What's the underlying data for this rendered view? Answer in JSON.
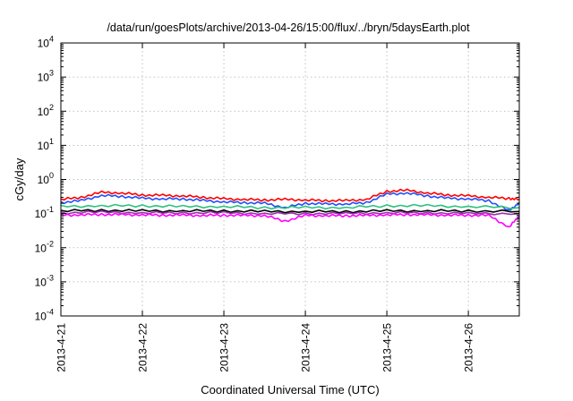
{
  "chart_data": {
    "type": "line",
    "title": "/data/run/goesPlots/archive/2013-04-26/15:00/flux/../bryn/5daysEarth.plot",
    "xlabel": "Coordinated Universal Time (UTC)",
    "ylabel": "cGy/day",
    "yscale": "log",
    "ylim": [
      0.0001,
      10000
    ],
    "y_ticks": [
      {
        "value": 0.0001,
        "base": "10",
        "exp": "-4"
      },
      {
        "value": 0.001,
        "base": "10",
        "exp": "-3"
      },
      {
        "value": 0.01,
        "base": "10",
        "exp": "-2"
      },
      {
        "value": 0.1,
        "base": "10",
        "exp": "-1"
      },
      {
        "value": 1,
        "base": "10",
        "exp": "0"
      },
      {
        "value": 10,
        "base": "10",
        "exp": "1"
      },
      {
        "value": 100,
        "base": "10",
        "exp": "2"
      },
      {
        "value": 1000,
        "base": "10",
        "exp": "3"
      },
      {
        "value": 10000,
        "base": "10",
        "exp": "4"
      }
    ],
    "x_ticks": [
      "2013-4-21",
      "2013-4-22",
      "2013-4-23",
      "2013-4-24",
      "2013-4-25",
      "2013-4-26"
    ],
    "xlim": [
      "2013-04-21T00:00",
      "2013-04-26T15:00"
    ],
    "grid": true,
    "legend": "none",
    "series": [
      {
        "color": "#ff0000",
        "x": [
          "2013-04-21T00:00",
          "2013-04-21T06:00",
          "2013-04-21T12:00",
          "2013-04-21T18:00",
          "2013-04-22T00:00",
          "2013-04-22T06:00",
          "2013-04-22T12:00",
          "2013-04-22T18:00",
          "2013-04-23T00:00",
          "2013-04-23T06:00",
          "2013-04-23T12:00",
          "2013-04-23T18:00",
          "2013-04-24T00:00",
          "2013-04-24T06:00",
          "2013-04-24T12:00",
          "2013-04-24T18:00",
          "2013-04-25T00:00",
          "2013-04-25T06:00",
          "2013-04-25T12:00",
          "2013-04-25T18:00",
          "2013-04-26T00:00",
          "2013-04-26T06:00",
          "2013-04-26T12:00",
          "2013-04-26T15:00"
        ],
        "values": [
          0.26,
          0.3,
          0.42,
          0.4,
          0.35,
          0.34,
          0.33,
          0.3,
          0.27,
          0.26,
          0.25,
          0.26,
          0.25,
          0.24,
          0.24,
          0.26,
          0.45,
          0.48,
          0.4,
          0.35,
          0.33,
          0.3,
          0.28,
          0.26
        ]
      },
      {
        "color": "#1f4fff",
        "x": [
          "2013-04-21T00:00",
          "2013-04-21T06:00",
          "2013-04-21T12:00",
          "2013-04-21T18:00",
          "2013-04-22T00:00",
          "2013-04-22T06:00",
          "2013-04-22T12:00",
          "2013-04-22T18:00",
          "2013-04-23T00:00",
          "2013-04-23T06:00",
          "2013-04-23T12:00",
          "2013-04-23T18:00",
          "2013-04-24T00:00",
          "2013-04-24T06:00",
          "2013-04-24T12:00",
          "2013-04-24T18:00",
          "2013-04-25T00:00",
          "2013-04-25T06:00",
          "2013-04-25T12:00",
          "2013-04-25T18:00",
          "2013-04-26T00:00",
          "2013-04-26T06:00",
          "2013-04-26T12:00",
          "2013-04-26T15:00"
        ],
        "values": [
          0.21,
          0.24,
          0.34,
          0.32,
          0.28,
          0.27,
          0.27,
          0.24,
          0.22,
          0.21,
          0.2,
          0.15,
          0.2,
          0.19,
          0.19,
          0.21,
          0.37,
          0.4,
          0.33,
          0.28,
          0.27,
          0.24,
          0.12,
          0.21
        ]
      },
      {
        "color": "#2ec27e",
        "x": [
          "2013-04-21T00:00",
          "2013-04-21T12:00",
          "2013-04-22T00:00",
          "2013-04-22T12:00",
          "2013-04-23T00:00",
          "2013-04-23T12:00",
          "2013-04-24T00:00",
          "2013-04-24T12:00",
          "2013-04-25T00:00",
          "2013-04-25T12:00",
          "2013-04-26T00:00",
          "2013-04-26T15:00"
        ],
        "values": [
          0.16,
          0.17,
          0.17,
          0.16,
          0.16,
          0.15,
          0.15,
          0.15,
          0.17,
          0.17,
          0.16,
          0.15
        ]
      },
      {
        "color": "#000000",
        "x": [
          "2013-04-21T00:00",
          "2013-04-21T12:00",
          "2013-04-22T00:00",
          "2013-04-22T12:00",
          "2013-04-23T00:00",
          "2013-04-23T12:00",
          "2013-04-24T00:00",
          "2013-04-24T12:00",
          "2013-04-25T00:00",
          "2013-04-25T12:00",
          "2013-04-26T00:00",
          "2013-04-26T15:00"
        ],
        "values": [
          0.12,
          0.125,
          0.12,
          0.12,
          0.12,
          0.115,
          0.115,
          0.115,
          0.12,
          0.12,
          0.12,
          0.115
        ]
      },
      {
        "color": "#9b2fae",
        "x": [
          "2013-04-21T00:00",
          "2013-04-21T12:00",
          "2013-04-22T00:00",
          "2013-04-22T12:00",
          "2013-04-23T00:00",
          "2013-04-23T12:00",
          "2013-04-24T00:00",
          "2013-04-24T12:00",
          "2013-04-25T00:00",
          "2013-04-25T12:00",
          "2013-04-26T00:00",
          "2013-04-26T15:00"
        ],
        "values": [
          0.105,
          0.11,
          0.105,
          0.105,
          0.105,
          0.1,
          0.1,
          0.1,
          0.105,
          0.105,
          0.1,
          0.1
        ]
      },
      {
        "color": "#ff00ff",
        "x": [
          "2013-04-21T00:00",
          "2013-04-21T06:00",
          "2013-04-21T12:00",
          "2013-04-21T18:00",
          "2013-04-22T00:00",
          "2013-04-22T06:00",
          "2013-04-22T12:00",
          "2013-04-22T18:00",
          "2013-04-23T00:00",
          "2013-04-23T06:00",
          "2013-04-23T12:00",
          "2013-04-23T18:00",
          "2013-04-24T00:00",
          "2013-04-24T06:00",
          "2013-04-24T12:00",
          "2013-04-24T18:00",
          "2013-04-25T00:00",
          "2013-04-25T06:00",
          "2013-04-25T12:00",
          "2013-04-25T18:00",
          "2013-04-26T00:00",
          "2013-04-26T06:00",
          "2013-04-26T12:00",
          "2013-04-26T15:00"
        ],
        "values": [
          0.09,
          0.092,
          0.095,
          0.093,
          0.092,
          0.09,
          0.09,
          0.088,
          0.09,
          0.088,
          0.088,
          0.06,
          0.088,
          0.087,
          0.087,
          0.088,
          0.092,
          0.094,
          0.092,
          0.09,
          0.09,
          0.088,
          0.04,
          0.085
        ]
      }
    ]
  }
}
